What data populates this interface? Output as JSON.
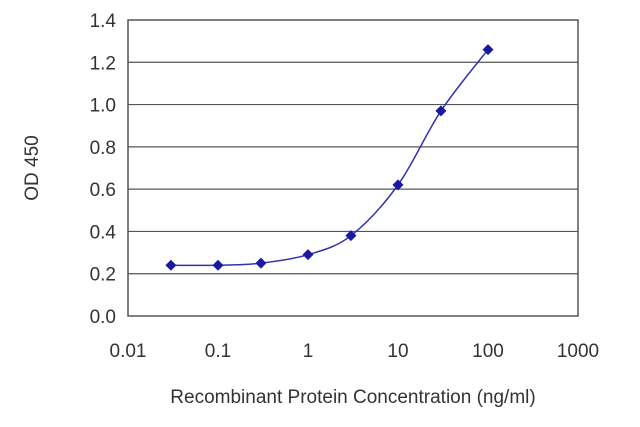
{
  "chart_data": {
    "type": "line",
    "title": "",
    "xlabel": "Recombinant Protein Concentration (ng/ml)",
    "ylabel": "OD 450",
    "x_scale": "log",
    "xlim": [
      0.01,
      1000
    ],
    "ylim": [
      0.0,
      1.4
    ],
    "x_ticks": [
      "0.01",
      "0.1",
      "1",
      "10",
      "100",
      "1000"
    ],
    "y_ticks": [
      "0.0",
      "0.2",
      "0.4",
      "0.6",
      "0.8",
      "1.0",
      "1.2",
      "1.4"
    ],
    "grid": "horizontal",
    "legend": "none",
    "series": [
      {
        "x": [
          0.03,
          0.1,
          0.3,
          1,
          3,
          10,
          30,
          100
        ],
        "y": [
          0.24,
          0.24,
          0.25,
          0.29,
          0.38,
          0.62,
          0.97,
          1.26
        ],
        "color": "#3333aa",
        "marker": "diamond",
        "marker_color": "#1a1aa0"
      }
    ]
  }
}
